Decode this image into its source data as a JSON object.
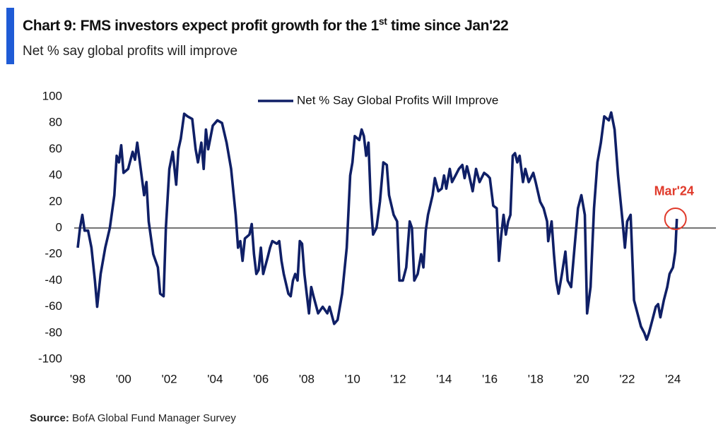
{
  "chart_data": {
    "type": "line",
    "title": "Chart 9: FMS investors expect profit growth for the 1",
    "title_superscript": "st",
    "title_end": " time since Jan'22",
    "subtitle": "Net % say global profits will improve",
    "source_label": "Source:",
    "source": "BofA Global Fund Manager Survey",
    "annotation": "Mar'24",
    "legend": "top",
    "x": [
      1998.0,
      1998.1,
      1998.2,
      1998.3,
      1998.45,
      1998.6,
      1998.75,
      1998.85,
      1999.0,
      1999.2,
      1999.4,
      1999.6,
      1999.7,
      1999.8,
      1999.9,
      2000.0,
      2000.2,
      2000.4,
      2000.5,
      2000.6,
      2000.75,
      2000.9,
      2001.0,
      2001.1,
      2001.3,
      2001.5,
      2001.6,
      2001.75,
      2001.85,
      2002.0,
      2002.15,
      2002.3,
      2002.4,
      2002.5,
      2002.65,
      2002.8,
      2003.0,
      2003.15,
      2003.25,
      2003.4,
      2003.5,
      2003.6,
      2003.7,
      2003.9,
      2004.1,
      2004.3,
      2004.5,
      2004.7,
      2004.9,
      2005.0,
      2005.1,
      2005.2,
      2005.3,
      2005.5,
      2005.6,
      2005.7,
      2005.8,
      2005.9,
      2006.0,
      2006.1,
      2006.3,
      2006.4,
      2006.5,
      2006.7,
      2006.8,
      2006.9,
      2007.0,
      2007.2,
      2007.3,
      2007.4,
      2007.5,
      2007.6,
      2007.7,
      2007.8,
      2007.9,
      2008.1,
      2008.2,
      2008.3,
      2008.5,
      2008.7,
      2008.9,
      2009.0,
      2009.2,
      2009.35,
      2009.55,
      2009.75,
      2009.9,
      2010.0,
      2010.1,
      2010.3,
      2010.4,
      2010.5,
      2010.6,
      2010.7,
      2010.8,
      2010.9,
      2011.05,
      2011.2,
      2011.35,
      2011.5,
      2011.6,
      2011.8,
      2011.95,
      2012.05,
      2012.2,
      2012.35,
      2012.5,
      2012.6,
      2012.7,
      2012.85,
      2013.0,
      2013.1,
      2013.2,
      2013.3,
      2013.5,
      2013.6,
      2013.75,
      2013.9,
      2014.0,
      2014.1,
      2014.25,
      2014.35,
      2014.5,
      2014.65,
      2014.8,
      2014.9,
      2015.0,
      2015.1,
      2015.25,
      2015.4,
      2015.55,
      2015.75,
      2015.9,
      2016.0,
      2016.15,
      2016.3,
      2016.4,
      2016.5,
      2016.6,
      2016.7,
      2016.8,
      2016.9,
      2017.0,
      2017.1,
      2017.2,
      2017.3,
      2017.45,
      2017.55,
      2017.7,
      2017.9,
      2018.0,
      2018.2,
      2018.35,
      2018.5,
      2018.55,
      2018.7,
      2018.8,
      2018.9,
      2019.0,
      2019.15,
      2019.3,
      2019.4,
      2019.55,
      2019.7,
      2019.85,
      2020.0,
      2020.15,
      2020.25,
      2020.4,
      2020.55,
      2020.7,
      2020.85,
      2021.0,
      2021.2,
      2021.3,
      2021.45,
      2021.6,
      2021.8,
      2021.9,
      2022.0,
      2022.15,
      2022.3,
      2022.45,
      2022.6,
      2022.75,
      2022.85,
      2022.95,
      2023.1,
      2023.25,
      2023.35,
      2023.45,
      2023.6,
      2023.75,
      2023.85,
      2024.0,
      2024.1,
      2024.17
    ],
    "series": [
      {
        "name": "Net % Say Global Profits Will Improve",
        "color": "#0f1f66",
        "values": [
          -15,
          0,
          10,
          -2,
          -2,
          -15,
          -40,
          -60,
          -35,
          -15,
          0,
          25,
          55,
          50,
          63,
          42,
          45,
          58,
          52,
          65,
          45,
          25,
          35,
          5,
          -20,
          -30,
          -50,
          -52,
          0,
          45,
          58,
          33,
          60,
          68,
          87,
          85,
          83,
          60,
          50,
          65,
          45,
          75,
          60,
          78,
          82,
          80,
          65,
          45,
          10,
          -15,
          -10,
          -25,
          -8,
          -5,
          3,
          -20,
          -35,
          -32,
          -15,
          -35,
          -22,
          -15,
          -10,
          -12,
          -10,
          -25,
          -35,
          -50,
          -52,
          -40,
          -35,
          -40,
          -10,
          -12,
          -35,
          -65,
          -45,
          -52,
          -65,
          -60,
          -65,
          -60,
          -73,
          -70,
          -50,
          -15,
          40,
          50,
          70,
          67,
          75,
          70,
          55,
          65,
          20,
          -5,
          0,
          20,
          50,
          48,
          25,
          10,
          5,
          -40,
          -40,
          -30,
          5,
          0,
          -40,
          -35,
          -20,
          -30,
          -2,
          10,
          25,
          38,
          28,
          30,
          40,
          30,
          45,
          35,
          40,
          45,
          48,
          38,
          47,
          40,
          28,
          45,
          35,
          42,
          40,
          38,
          17,
          15,
          -25,
          -5,
          10,
          -5,
          5,
          10,
          55,
          57,
          50,
          55,
          35,
          45,
          35,
          42,
          35,
          20,
          15,
          5,
          -10,
          5,
          -20,
          -40,
          -50,
          -35,
          -18,
          -40,
          -45,
          -15,
          15,
          25,
          10,
          -65,
          -45,
          15,
          50,
          65,
          85,
          82,
          88,
          75,
          40,
          5,
          -15,
          5,
          10,
          -55,
          -65,
          -75,
          -80,
          -85,
          -80,
          -70,
          -60,
          -58,
          -68,
          -55,
          -45,
          -35,
          -30,
          -18,
          7
        ]
      }
    ],
    "xlim": [
      1998,
      2026
    ],
    "xticks": [
      {
        "value": 1998,
        "label": "'98"
      },
      {
        "value": 2000,
        "label": "'00"
      },
      {
        "value": 2002,
        "label": "'02"
      },
      {
        "value": 2004,
        "label": "'04"
      },
      {
        "value": 2006,
        "label": "'06"
      },
      {
        "value": 2008,
        "label": "'08"
      },
      {
        "value": 2010,
        "label": "'10"
      },
      {
        "value": 2012,
        "label": "'12"
      },
      {
        "value": 2014,
        "label": "'14"
      },
      {
        "value": 2016,
        "label": "'16"
      },
      {
        "value": 2018,
        "label": "'18"
      },
      {
        "value": 2020,
        "label": "'20"
      },
      {
        "value": 2022,
        "label": "'22"
      },
      {
        "value": 2024,
        "label": "'24"
      }
    ],
    "ylim": [
      -100,
      100
    ],
    "yticks": [
      -100,
      -80,
      -60,
      -40,
      -20,
      0,
      20,
      40,
      60,
      80,
      100
    ]
  }
}
